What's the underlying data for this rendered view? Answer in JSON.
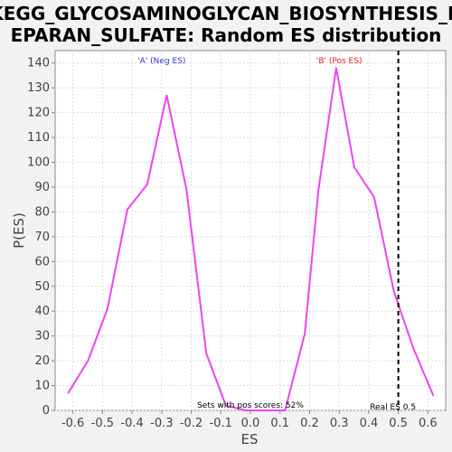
{
  "chart_data": {
    "type": "line",
    "title_line1": "KEGG_GLYCOSAMINOGLYCAN_BIOSYNTHESIS_H",
    "title_line2": "EPARAN_SULFATE: Random ES distribution",
    "xlabel": "ES",
    "ylabel": "P(ES)",
    "xlim": [
      -0.66,
      0.66
    ],
    "ylim": [
      0,
      145
    ],
    "x_ticks": [
      -0.6,
      -0.5,
      -0.4,
      -0.3,
      -0.2,
      -0.1,
      0.0,
      0.1,
      0.2,
      0.3,
      0.4,
      0.5,
      0.6
    ],
    "x_tick_labels": [
      "-0.6",
      "-0.5",
      "-0.4",
      "-0.3",
      "-0.2",
      "-0.1",
      "0.0",
      "0.1",
      "0.2",
      "0.3",
      "0.4",
      "0.5",
      "0.6"
    ],
    "y_ticks": [
      0,
      10,
      20,
      30,
      40,
      50,
      60,
      70,
      80,
      90,
      100,
      110,
      120,
      130,
      140
    ],
    "y_tick_labels": [
      "0",
      "10",
      "20",
      "30",
      "40",
      "50",
      "60",
      "70",
      "80",
      "90",
      "100",
      "110",
      "120",
      "130",
      "140"
    ],
    "grid": true,
    "series": [
      {
        "color": "#ee44ee",
        "x": [
          -0.616,
          -0.549,
          -0.483,
          -0.416,
          -0.349,
          -0.283,
          -0.216,
          -0.149,
          -0.083,
          -0.016,
          0.051,
          0.117,
          0.184,
          0.23,
          0.29,
          0.351,
          0.418,
          0.485,
          0.551,
          0.618
        ],
        "y": [
          7,
          20,
          41,
          81,
          91,
          127,
          89,
          23,
          2,
          0,
          0,
          0,
          31,
          89,
          138,
          98,
          86,
          48,
          25,
          6
        ]
      }
    ],
    "annotations": {
      "neg_label": "'A' (Neg ES)",
      "neg_color": "#3333cc",
      "pos_label": "'B' (Pos ES)",
      "pos_color": "#dd2222",
      "sets_text": "Sets with pos scores: 52%",
      "real_es_label": "Real ES 0.5",
      "real_es": 0.5
    }
  }
}
